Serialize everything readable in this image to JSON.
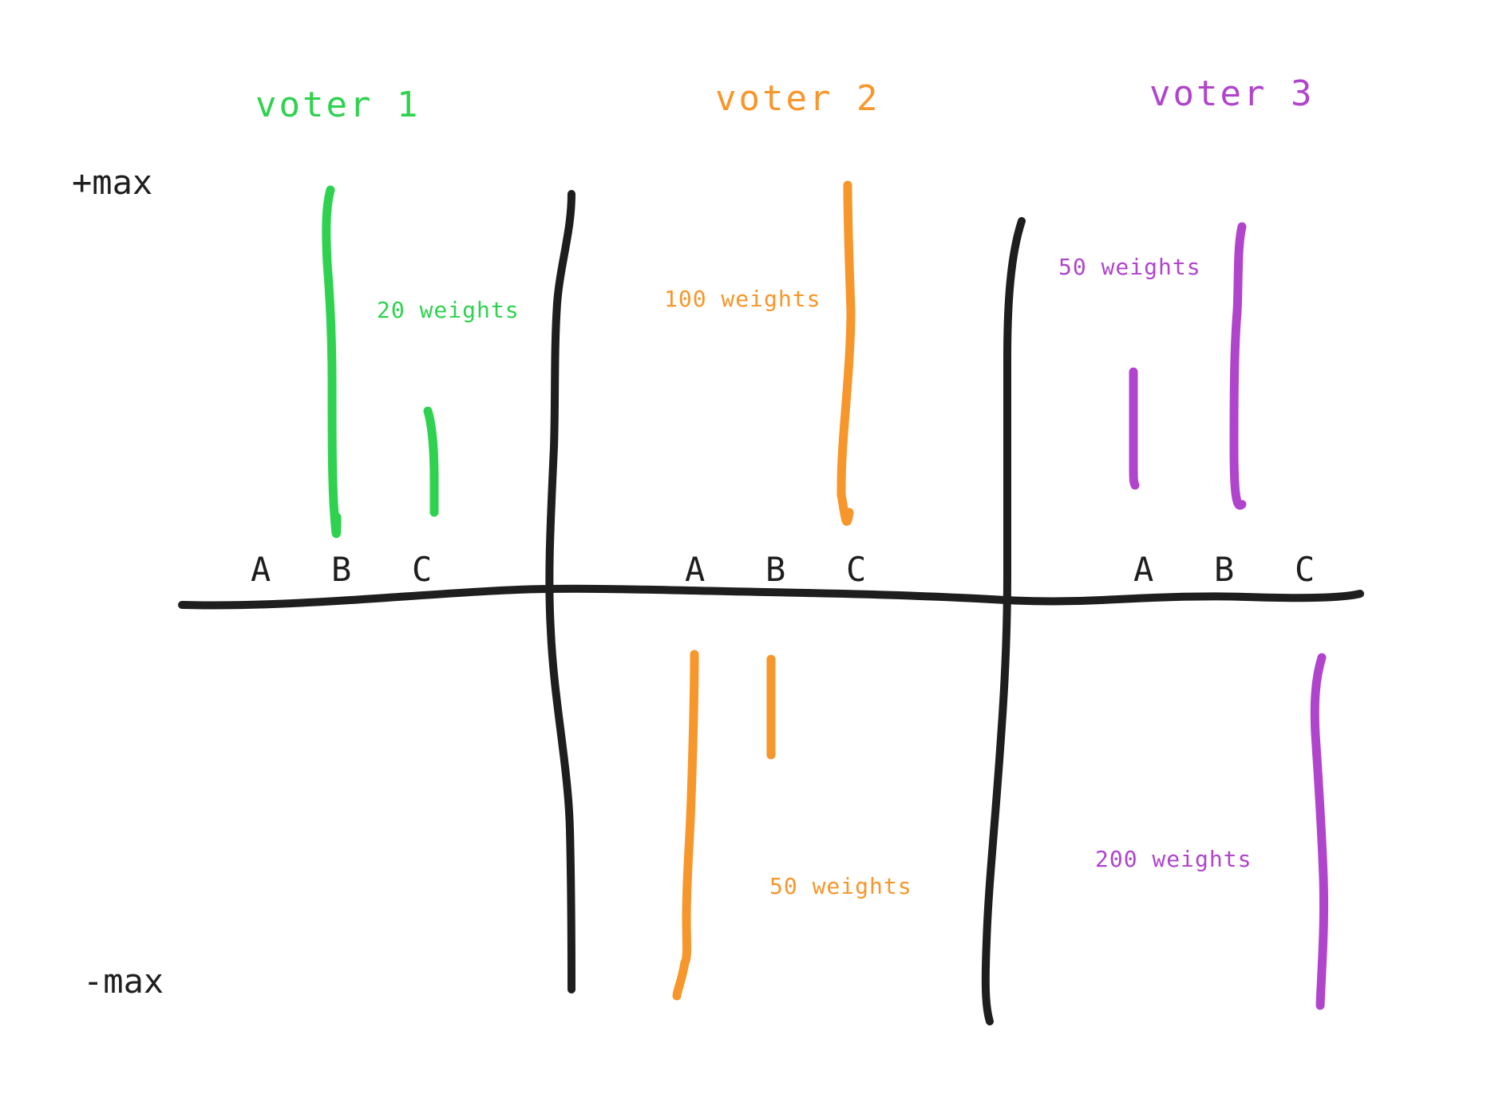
{
  "axis": {
    "top_label": "+max",
    "bottom_label": "-max"
  },
  "colors": {
    "voter1": "#2fd24f",
    "voter2": "#f7962a",
    "voter3": "#b044cc",
    "ink": "#1e1e1e"
  },
  "voters": [
    {
      "title": "voter 1",
      "candidates": [
        "A",
        "B",
        "C"
      ],
      "weight_labels": [
        "20 weights"
      ]
    },
    {
      "title": "voter 2",
      "candidates": [
        "A",
        "B",
        "C"
      ],
      "weight_labels": [
        "100 weights",
        "50 weights"
      ]
    },
    {
      "title": "voter 3",
      "candidates": [
        "A",
        "B",
        "C"
      ],
      "weight_labels": [
        "50 weights",
        "200 weights"
      ]
    }
  ]
}
